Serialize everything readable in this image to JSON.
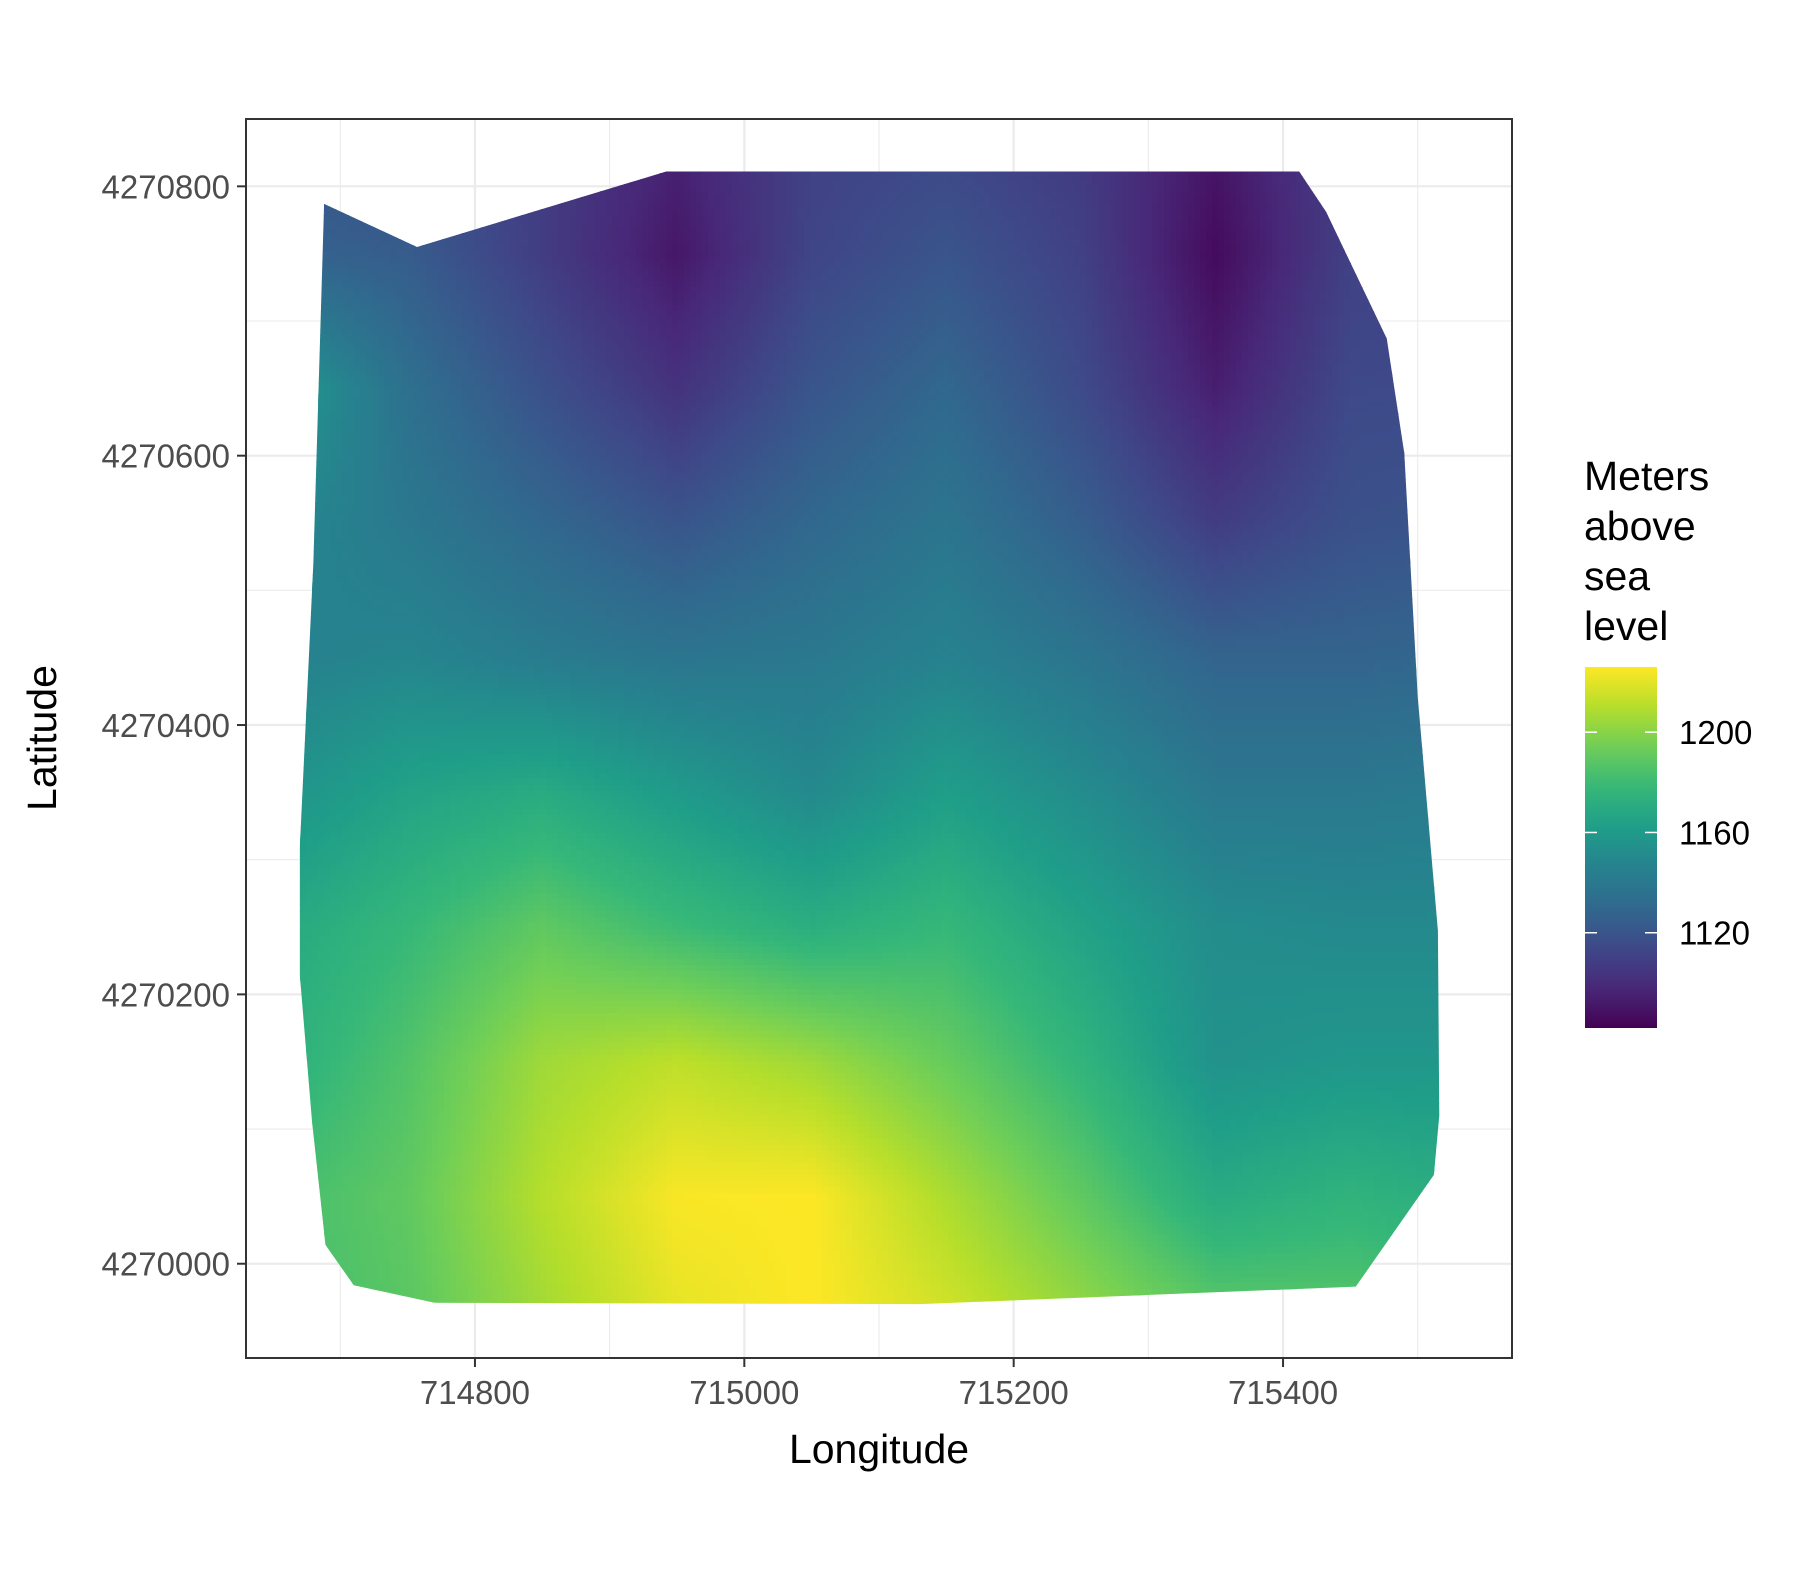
{
  "chart_data": {
    "type": "heatmap",
    "title": "",
    "xlabel": "Longitude",
    "ylabel": "Latitude",
    "xlim": [
      714630,
      715570
    ],
    "ylim": [
      4269930,
      4270850
    ],
    "x_ticks": [
      714800,
      715000,
      715200,
      715400
    ],
    "y_ticks": [
      4270000,
      4270200,
      4270400,
      4270600,
      4270800
    ],
    "grid": true,
    "colormap": "viridis",
    "legend": {
      "title_lines": [
        "Meters",
        "above",
        "sea",
        "level"
      ],
      "ticks": [
        1120,
        1160,
        1200
      ],
      "range": [
        1082,
        1226
      ],
      "placement": "right"
    },
    "boundary": [
      [
        714688,
        4270787
      ],
      [
        714757,
        4270755
      ],
      [
        714942,
        4270811
      ],
      [
        715412,
        4270811
      ],
      [
        715432,
        4270781
      ],
      [
        715477,
        4270687
      ],
      [
        715490,
        4270602
      ],
      [
        715500,
        4270421
      ],
      [
        715515,
        4270247
      ],
      [
        715516,
        4270110
      ],
      [
        715512,
        4270066
      ],
      [
        715454,
        4269983
      ],
      [
        715130,
        4269970
      ],
      [
        714770,
        4269971
      ],
      [
        714710,
        4269984
      ],
      [
        714689,
        4270014
      ],
      [
        714679,
        4270106
      ],
      [
        714670,
        4270214
      ],
      [
        714670,
        4270310
      ],
      [
        714680,
        4270520
      ]
    ],
    "elevation_grid": {
      "x": [
        714650,
        714750,
        714850,
        714950,
        715050,
        715150,
        715250,
        715350,
        715450,
        715550
      ],
      "y": [
        4270850,
        4270750,
        4270650,
        4270550,
        4270450,
        4270350,
        4270250,
        4270150,
        4270050,
        4269950
      ],
      "z": [
        [
          1118,
          1115,
          1108,
          1097,
          1110,
          1112,
          1106,
          1092,
          1108,
          1110
        ],
        [
          1128,
          1124,
          1108,
          1091,
          1112,
          1120,
          1110,
          1086,
          1110,
          1112
        ],
        [
          1162,
          1135,
          1118,
          1103,
          1120,
          1130,
          1115,
          1094,
          1114,
          1115
        ],
        [
          1150,
          1140,
          1130,
          1120,
          1130,
          1138,
          1125,
          1108,
          1118,
          1120
        ],
        [
          1145,
          1148,
          1142,
          1138,
          1140,
          1146,
          1138,
          1128,
          1128,
          1130
        ],
        [
          1155,
          1165,
          1170,
          1160,
          1150,
          1162,
          1152,
          1140,
          1140,
          1142
        ],
        [
          1168,
          1178,
          1190,
          1180,
          1172,
          1178,
          1165,
          1152,
          1150,
          1150
        ],
        [
          1172,
          1186,
          1205,
          1212,
          1205,
          1192,
          1176,
          1155,
          1158,
          1158
        ],
        [
          1182,
          1190,
          1210,
          1225,
          1226,
          1208,
          1190,
          1170,
          1175,
          1170
        ],
        [
          1182,
          1188,
          1205,
          1220,
          1226,
          1218,
          1205,
          1192,
          1190,
          1185
        ]
      ]
    }
  }
}
